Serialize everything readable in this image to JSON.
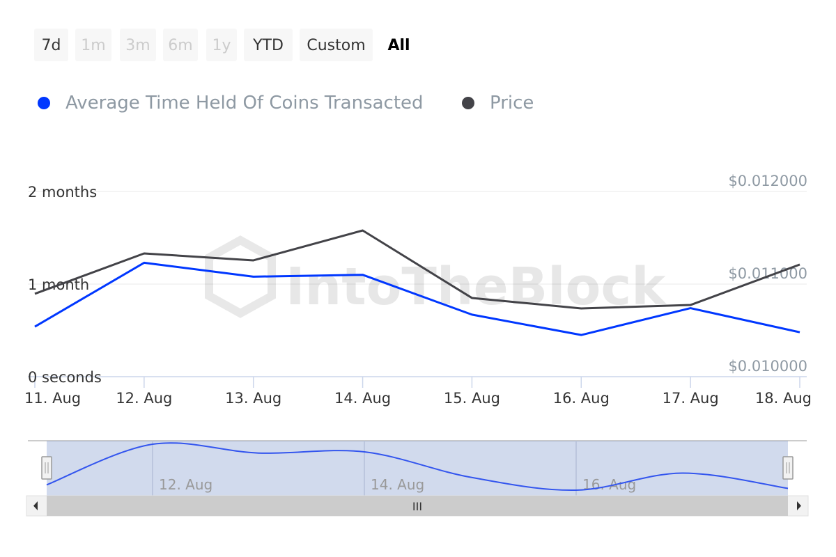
{
  "range_selector": {
    "buttons": [
      {
        "label": "7d",
        "state": "enabled"
      },
      {
        "label": "1m",
        "state": "disabled"
      },
      {
        "label": "3m",
        "state": "disabled"
      },
      {
        "label": "6m",
        "state": "disabled"
      },
      {
        "label": "1y",
        "state": "disabled"
      },
      {
        "label": "YTD",
        "state": "enabled"
      },
      {
        "label": "Custom",
        "state": "enabled"
      },
      {
        "label": "All",
        "state": "selected"
      }
    ]
  },
  "watermark": "IntoTheBlock",
  "navigator": {
    "tick_labels": [
      "12. Aug",
      "14. Aug",
      "16. Aug"
    ],
    "scrollbar_grip": "III"
  },
  "chart_data": {
    "type": "line",
    "title": "",
    "categories": [
      "11. Aug",
      "12. Aug",
      "13. Aug",
      "14. Aug",
      "15. Aug",
      "16. Aug",
      "17. Aug",
      "18. Aug"
    ],
    "legend_position": "top-left",
    "grid": true,
    "left_axis": {
      "unit": "months",
      "range": [
        0,
        2
      ],
      "ticks": [
        0,
        1,
        2
      ],
      "tick_labels": [
        "0 seconds",
        "1 month",
        "2 months"
      ]
    },
    "right_axis": {
      "unit": "USD",
      "range": [
        0.01,
        0.012
      ],
      "ticks": [
        0.01,
        0.011,
        0.012
      ],
      "tick_labels": [
        "$0.010000",
        "$0.011000",
        "$0.012000"
      ]
    },
    "series": [
      {
        "name": "Average Time Held Of Coins Transacted",
        "axis": "left",
        "color": "#0037ff",
        "values": [
          0.54,
          1.23,
          1.08,
          1.1,
          0.67,
          0.45,
          0.74,
          0.48
        ]
      },
      {
        "name": "Price",
        "axis": "right",
        "color": "#434348",
        "values": [
          0.010895,
          0.011331,
          0.011256,
          0.011579,
          0.01085,
          0.010737,
          0.010774,
          0.011211
        ]
      }
    ]
  }
}
